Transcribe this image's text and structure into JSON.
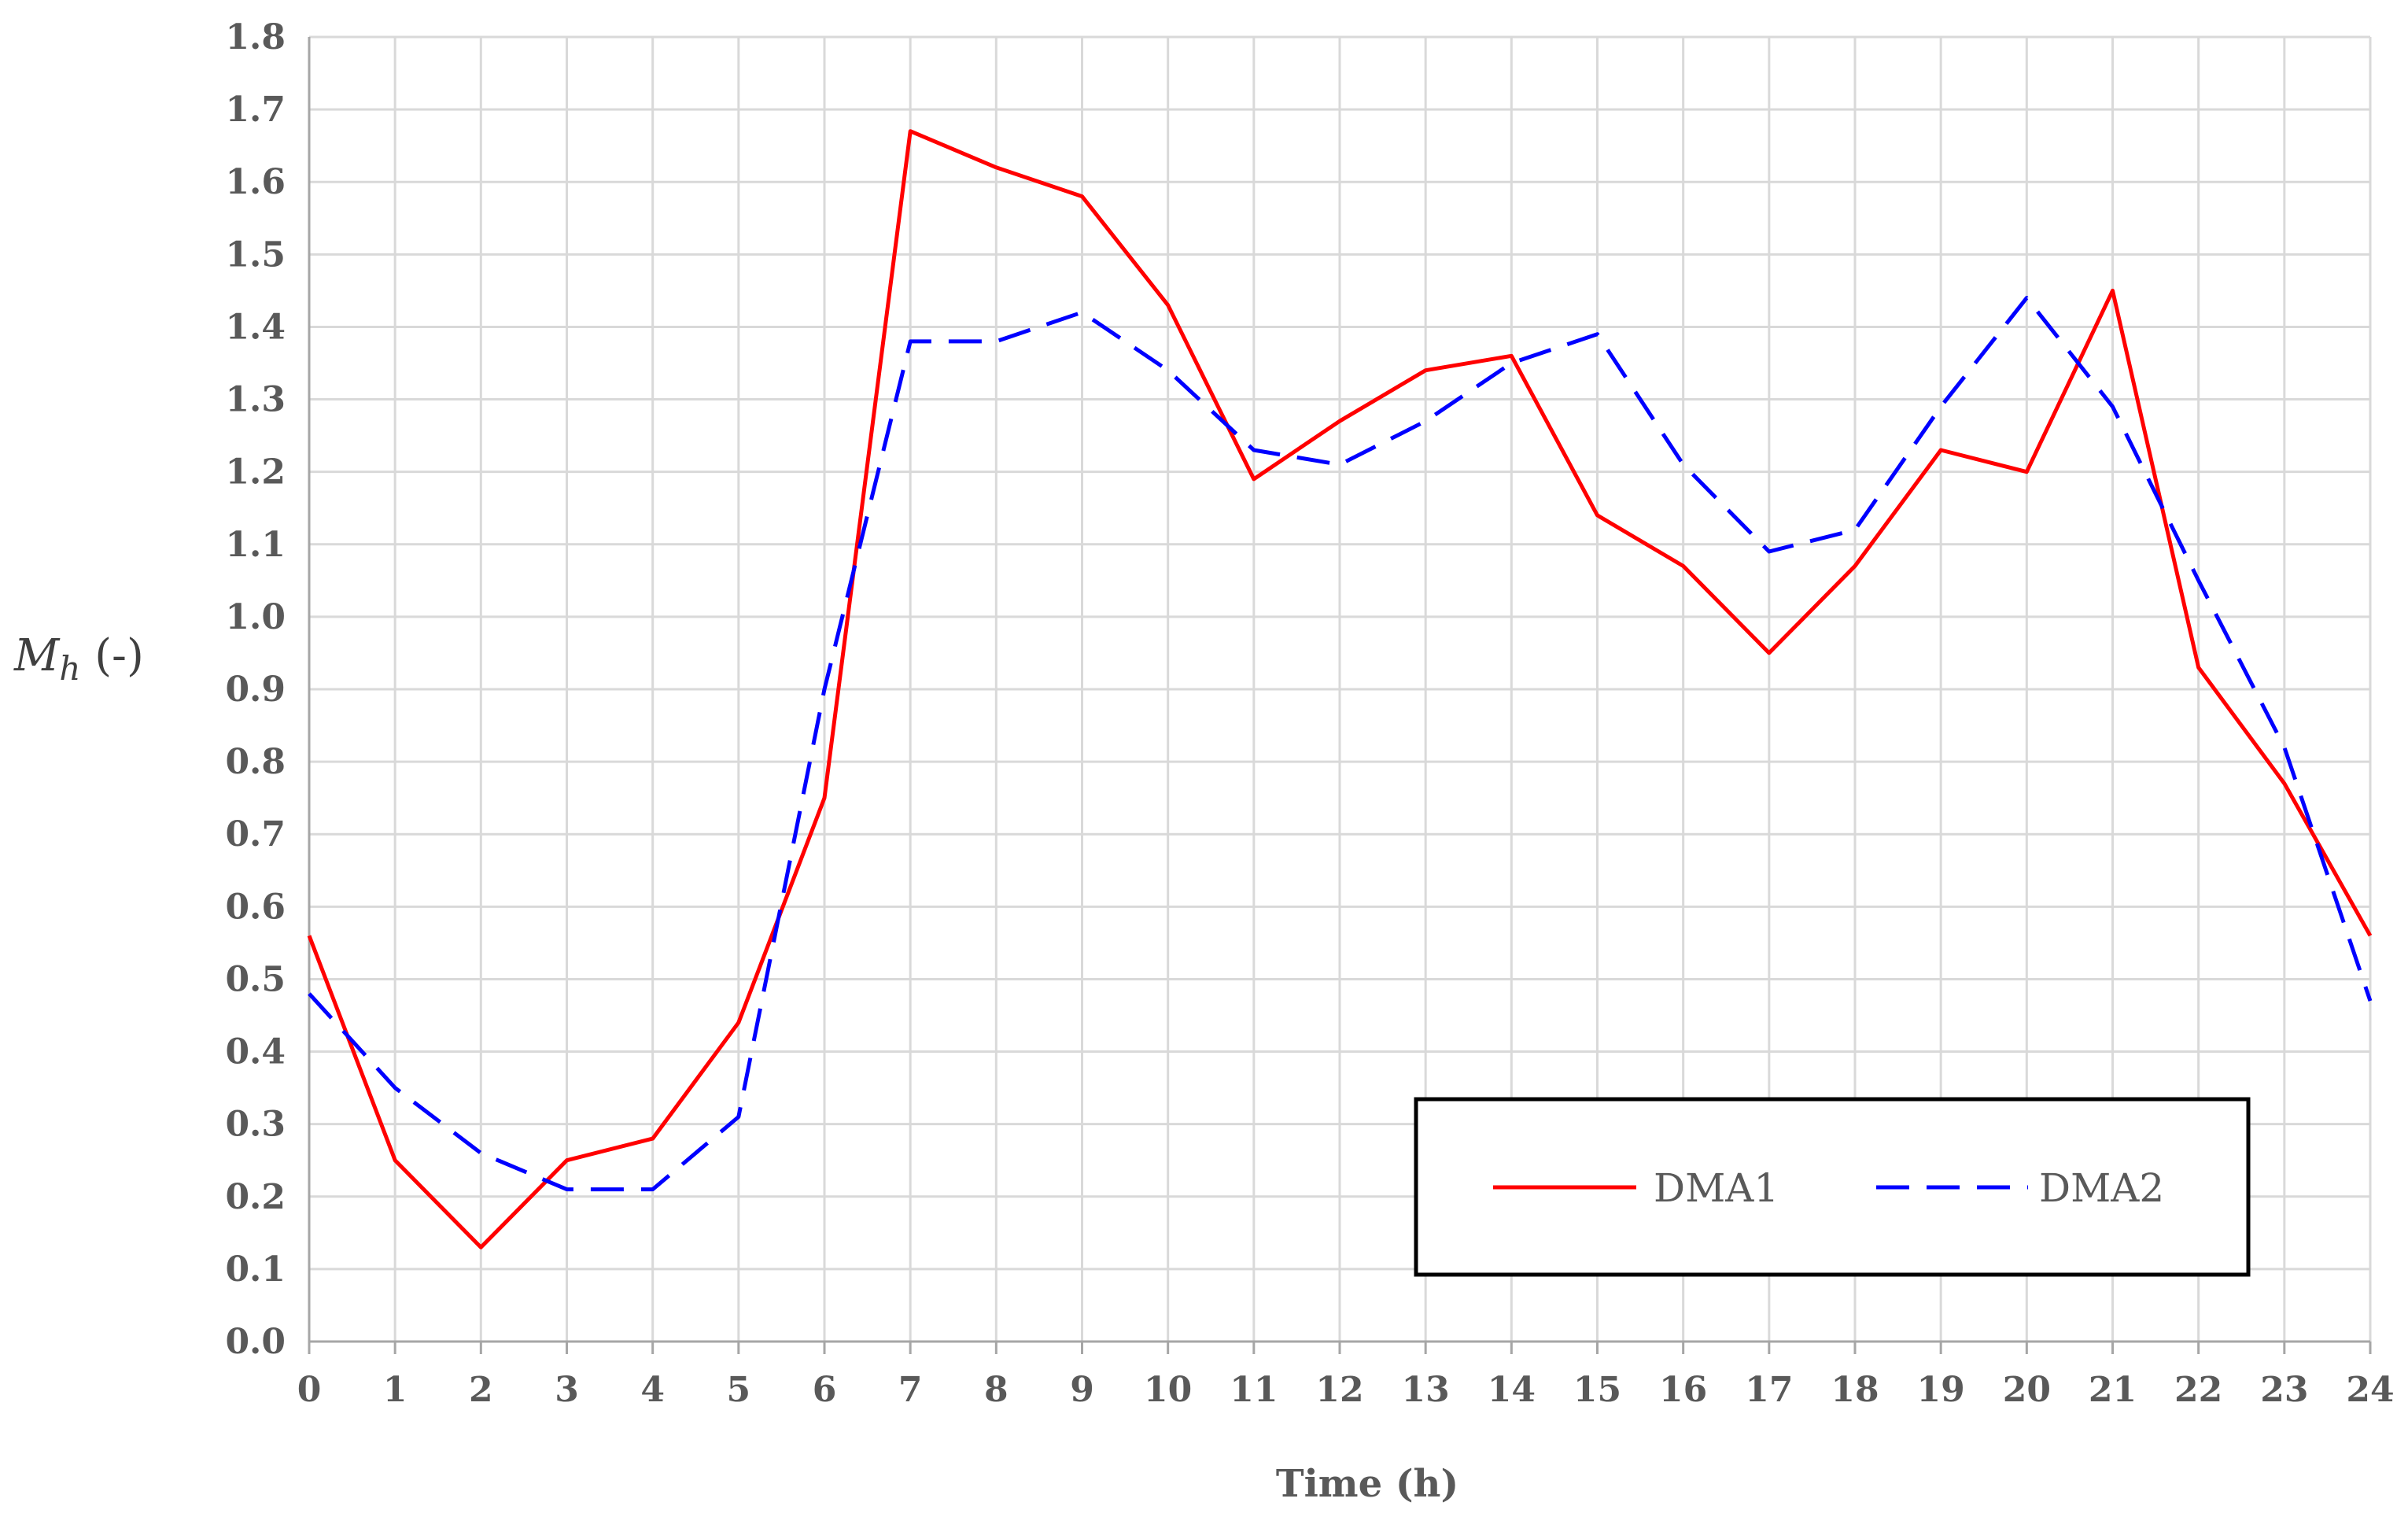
{
  "chart_data": {
    "type": "line",
    "title": "",
    "xlabel": "Time (h)",
    "ylabel": {
      "symbol": "M",
      "subscript": "h",
      "unit": " (-)"
    },
    "x": [
      0,
      1,
      2,
      3,
      4,
      5,
      6,
      7,
      8,
      9,
      10,
      11,
      12,
      13,
      14,
      15,
      16,
      17,
      18,
      19,
      20,
      21,
      22,
      23,
      24
    ],
    "xlim": [
      0,
      24
    ],
    "ylim": [
      0.0,
      1.8
    ],
    "x_ticks": [
      "0",
      "1",
      "2",
      "3",
      "4",
      "5",
      "6",
      "7",
      "8",
      "9",
      "10",
      "11",
      "12",
      "13",
      "14",
      "15",
      "16",
      "17",
      "18",
      "19",
      "20",
      "21",
      "22",
      "23",
      "24"
    ],
    "y_ticks": [
      "0.0",
      "0.1",
      "0.2",
      "0.3",
      "0.4",
      "0.5",
      "0.6",
      "0.7",
      "0.8",
      "0.9",
      "1.0",
      "1.1",
      "1.2",
      "1.3",
      "1.4",
      "1.5",
      "1.6",
      "1.7",
      "1.8"
    ],
    "grid": true,
    "legend_position": "bottom-right",
    "series": [
      {
        "name": "DMA1",
        "color": "#ff0000",
        "style": "solid",
        "values": [
          0.56,
          0.25,
          0.13,
          0.25,
          0.28,
          0.44,
          0.75,
          1.67,
          1.62,
          1.58,
          1.43,
          1.19,
          1.27,
          1.34,
          1.36,
          1.14,
          1.07,
          0.95,
          1.07,
          1.23,
          1.2,
          1.45,
          0.93,
          0.77,
          0.56
        ]
      },
      {
        "name": "DMA2",
        "color": "#0000ff",
        "style": "dashed",
        "values": [
          0.48,
          0.35,
          0.26,
          0.21,
          0.21,
          0.31,
          0.9,
          1.38,
          1.38,
          1.42,
          1.34,
          1.23,
          1.21,
          1.27,
          1.35,
          1.39,
          1.21,
          1.09,
          1.12,
          1.29,
          1.44,
          1.29,
          1.05,
          0.82,
          0.47
        ]
      }
    ]
  }
}
